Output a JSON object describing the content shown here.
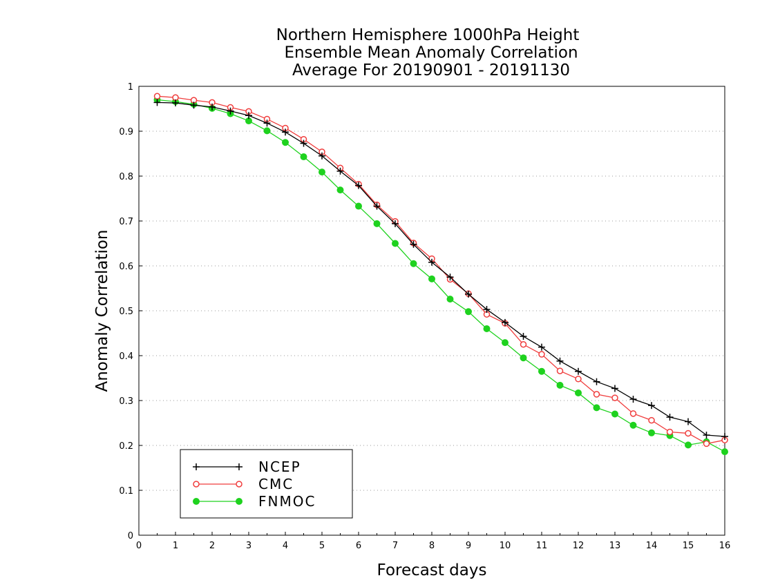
{
  "chart_data": {
    "type": "line",
    "title": [
      "Northern Hemisphere 1000hPa Height",
      "Ensemble Mean Anomaly Correlation",
      "Average For 20190901 - 20191130"
    ],
    "xlabel": "Forecast days",
    "ylabel": "Anomaly Correlation",
    "xlim": [
      0,
      16
    ],
    "ylim": [
      0,
      1
    ],
    "xticks": [
      0,
      1,
      2,
      3,
      4,
      5,
      6,
      7,
      8,
      9,
      10,
      11,
      12,
      13,
      14,
      15,
      16
    ],
    "yticks": [
      0,
      0.1,
      0.2,
      0.3,
      0.4,
      0.5,
      0.6,
      0.7,
      0.8,
      0.9,
      1
    ],
    "ytick_labels": [
      "0",
      "0.1",
      "0.2",
      "0.3",
      "0.4",
      "0.5",
      "0.6",
      "0.7",
      "0.8",
      "0.9",
      "1"
    ],
    "grid": "horizontal dotted",
    "legend_position": "bottom-left",
    "x": [
      0.5,
      1,
      1.5,
      2,
      2.5,
      3,
      3.5,
      4,
      4.5,
      5,
      5.5,
      6,
      6.5,
      7,
      7.5,
      8,
      8.5,
      9,
      9.5,
      10,
      10.5,
      11,
      11.5,
      12,
      12.5,
      13,
      13.5,
      14,
      14.5,
      15,
      15.5,
      16
    ],
    "series": [
      {
        "name": "NCEP",
        "color": "#000000",
        "marker": "plus",
        "values": [
          0.964,
          0.963,
          0.958,
          0.954,
          0.945,
          0.935,
          0.918,
          0.898,
          0.873,
          0.845,
          0.811,
          0.779,
          0.733,
          0.694,
          0.648,
          0.608,
          0.575,
          0.537,
          0.503,
          0.474,
          0.443,
          0.419,
          0.388,
          0.365,
          0.342,
          0.327,
          0.303,
          0.289,
          0.263,
          0.253,
          0.223,
          0.22
        ]
      },
      {
        "name": "CMC",
        "color": "#f03c3c",
        "marker": "open-circle",
        "values": [
          0.978,
          0.975,
          0.969,
          0.964,
          0.953,
          0.944,
          0.927,
          0.907,
          0.882,
          0.854,
          0.818,
          0.782,
          0.736,
          0.699,
          0.651,
          0.616,
          0.57,
          0.538,
          0.492,
          0.472,
          0.425,
          0.403,
          0.366,
          0.348,
          0.314,
          0.306,
          0.271,
          0.256,
          0.23,
          0.227,
          0.204,
          0.212
        ]
      },
      {
        "name": "FNMOC",
        "color": "#1ed21e",
        "marker": "filled-circle",
        "values": [
          0.97,
          0.966,
          0.96,
          0.951,
          0.939,
          0.923,
          0.901,
          0.875,
          0.843,
          0.809,
          0.769,
          0.733,
          0.694,
          0.65,
          0.605,
          0.571,
          0.526,
          0.498,
          0.46,
          0.429,
          0.395,
          0.365,
          0.334,
          0.317,
          0.284,
          0.27,
          0.245,
          0.228,
          0.222,
          0.201,
          0.208,
          0.186
        ]
      }
    ]
  }
}
